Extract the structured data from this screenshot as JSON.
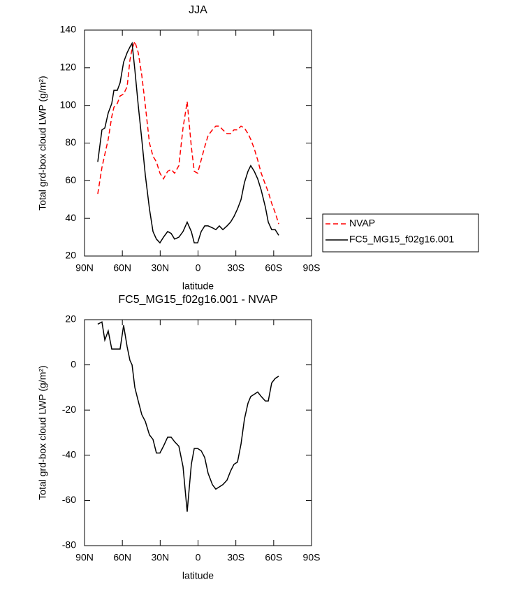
{
  "chart_data": [
    {
      "type": "line",
      "title": "JJA",
      "xlabel": "latitude",
      "ylabel": "Total grd-box cloud LWP (g/m²)",
      "x": [
        79.5,
        76.2,
        73.9,
        71.2,
        68.4,
        66.7,
        64.0,
        61.8,
        59.0,
        56.2,
        54.0,
        52.3,
        50.1,
        47.4,
        44.6,
        41.8,
        38.5,
        35.7,
        33.0,
        30.2,
        27.4,
        24.1,
        21.3,
        18.6,
        15.2,
        11.9,
        8.6,
        5.3,
        3.0,
        0.3,
        -2.5,
        -5.3,
        -8.0,
        -11.4,
        -14.1,
        -16.9,
        -19.7,
        -23.0,
        -25.8,
        -28.5,
        -31.3,
        -34.1,
        -36.8,
        -39.6,
        -41.8,
        -44.6,
        -47.3,
        -50.1,
        -53.4,
        -55.7,
        -58.4,
        -61.2,
        -64.0
      ],
      "series": [
        {
          "name": "NVAP",
          "color": "#ff0000",
          "linestyle": "dashed",
          "values": [
            53,
            67,
            74,
            82,
            94,
            99,
            101,
            105,
            106,
            110,
            124,
            130,
            134,
            128,
            116,
            100,
            80,
            73,
            70,
            64,
            61,
            65,
            66,
            64,
            68,
            88,
            102,
            78,
            65,
            64,
            71,
            78,
            84,
            87,
            89,
            89,
            87,
            85,
            85,
            87,
            87,
            89,
            88,
            85,
            82,
            77,
            71,
            64,
            58,
            54,
            48,
            43,
            37
          ]
        },
        {
          "name": "FC5_MG15_f02g16.001",
          "color": "#000000",
          "linestyle": "solid",
          "values": [
            70,
            87,
            88,
            96,
            101,
            108,
            108,
            112,
            123,
            128,
            131,
            133,
            119,
            100,
            82,
            63,
            45,
            33,
            29,
            27,
            30,
            33,
            32,
            29,
            30,
            33,
            38,
            33,
            27,
            27,
            33,
            36,
            36,
            35,
            34,
            36,
            34,
            36,
            38,
            41,
            45,
            50,
            59,
            65,
            68,
            65,
            61,
            55,
            46,
            38,
            34,
            34,
            31
          ]
        }
      ],
      "xlim": [
        90,
        -90
      ],
      "xticks": [
        {
          "value": 90,
          "label": "90N"
        },
        {
          "value": 60,
          "label": "60N"
        },
        {
          "value": 30,
          "label": "30N"
        },
        0,
        {
          "value": -30,
          "label": "30S"
        },
        {
          "value": -60,
          "label": "60S"
        },
        {
          "value": -90,
          "label": "90S"
        }
      ],
      "ylim": [
        20,
        140
      ],
      "yticks": [
        20,
        40,
        60,
        80,
        100,
        120,
        140
      ],
      "legend": "right"
    },
    {
      "type": "line",
      "title": "FC5_MG15_f02g16.001 - NVAP",
      "xlabel": "latitude",
      "ylabel": "Total grd-box cloud LWP (g/m²)",
      "x": [
        79.5,
        76.2,
        73.9,
        71.2,
        68.4,
        66.7,
        64.0,
        61.8,
        59.0,
        56.2,
        54.0,
        52.3,
        50.1,
        47.4,
        44.6,
        41.8,
        38.5,
        35.7,
        33.0,
        30.2,
        27.4,
        24.1,
        21.3,
        18.6,
        15.2,
        11.9,
        8.6,
        5.3,
        3.0,
        0.3,
        -2.5,
        -5.3,
        -8.0,
        -11.4,
        -14.1,
        -16.9,
        -19.7,
        -23.0,
        -25.8,
        -28.5,
        -31.3,
        -34.1,
        -36.8,
        -39.6,
        -41.8,
        -44.6,
        -47.3,
        -50.1,
        -53.4,
        -55.7,
        -58.4,
        -61.2,
        -64.0
      ],
      "color": "#000000",
      "values": [
        18,
        19,
        11,
        15,
        7,
        7,
        7,
        7,
        17.5,
        8,
        2,
        0,
        -10,
        -16,
        -22,
        -25,
        -31,
        -33,
        -39,
        -39,
        -36,
        -32,
        -32,
        -34,
        -36,
        -45,
        -65,
        -44,
        -37,
        -37,
        -38,
        -41,
        -48,
        -53,
        -55,
        -54,
        -53,
        -51,
        -47,
        -44,
        -43,
        -35,
        -24,
        -17,
        -14,
        -13,
        -12,
        -14,
        -16,
        -16,
        -8,
        -6,
        -5
      ],
      "xlim": [
        90,
        -90
      ],
      "xticks": [
        {
          "value": 90,
          "label": "90N"
        },
        {
          "value": 60,
          "label": "60N"
        },
        {
          "value": 30,
          "label": "30N"
        },
        0,
        {
          "value": -30,
          "label": "30S"
        },
        {
          "value": -60,
          "label": "60S"
        },
        {
          "value": -90,
          "label": "90S"
        }
      ],
      "ylim": [
        -80,
        20
      ],
      "yticks": [
        -80,
        -60,
        -40,
        -20,
        0,
        20
      ]
    }
  ]
}
